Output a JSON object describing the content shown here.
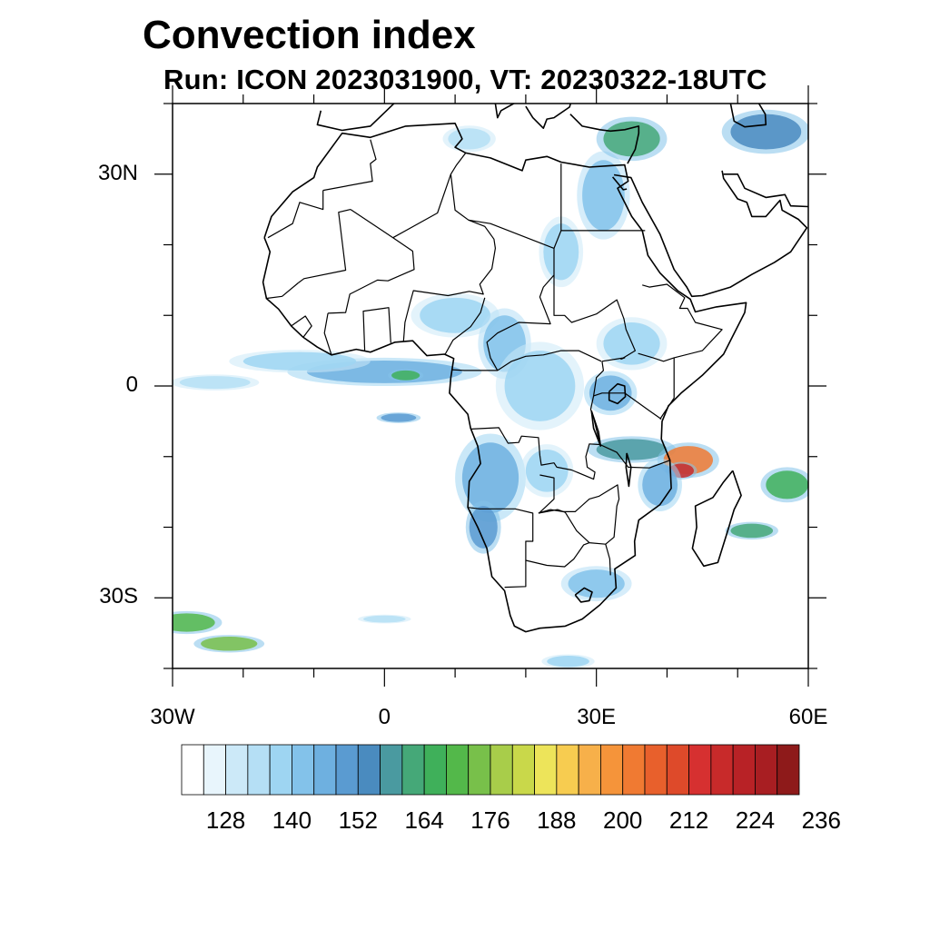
{
  "title": "Convection index",
  "subtitle": "Run: ICON 2023031900,  VT: 20230322-18UTC",
  "axes": {
    "lat_ticks": [
      {
        "value": 30,
        "label": "30N"
      },
      {
        "value": 0,
        "label": "0"
      },
      {
        "value": -30,
        "label": "30S"
      }
    ],
    "lon_ticks": [
      {
        "value": -30,
        "label": "30W"
      },
      {
        "value": 0,
        "label": "0"
      },
      {
        "value": 30,
        "label": "30E"
      },
      {
        "value": 60,
        "label": "60E"
      }
    ]
  },
  "colorbar": {
    "colors": [
      "#ffffff",
      "#e8f5fc",
      "#cce9f8",
      "#b5dff5",
      "#9ed5f2",
      "#83c2ea",
      "#6eb0e0",
      "#5a9bd1",
      "#4a8bbf",
      "#4a9aa0",
      "#45a878",
      "#3fb05a",
      "#53b84a",
      "#78c04a",
      "#a8cd4a",
      "#c9d84a",
      "#ede45a",
      "#f7cc50",
      "#f7b04a",
      "#f5943a",
      "#f07a32",
      "#e8602c",
      "#de4a2a",
      "#d63030",
      "#c82a2a",
      "#b82226",
      "#a81e22",
      "#8e1a1a"
    ],
    "labels": [
      "128",
      "140",
      "152",
      "164",
      "176",
      "188",
      "200",
      "212",
      "224",
      "236"
    ]
  },
  "convection_cells": [
    {
      "lon": 0,
      "lat": 2,
      "rlon": 11,
      "rlat": 1.6,
      "level": 6
    },
    {
      "lon": -12,
      "lat": 3.5,
      "rlon": 8,
      "rlat": 1.3,
      "level": 4
    },
    {
      "lon": -24,
      "lat": 0.5,
      "rlon": 5,
      "rlat": 0.9,
      "level": 3
    },
    {
      "lon": 3,
      "lat": 1.5,
      "rlon": 2,
      "rlat": 0.7,
      "level": 11
    },
    {
      "lon": 2,
      "lat": -4.5,
      "rlon": 2.5,
      "rlat": 0.6,
      "level": 7
    },
    {
      "lon": 10,
      "lat": 10,
      "rlon": 5,
      "rlat": 2.5,
      "level": 4
    },
    {
      "lon": 17,
      "lat": 6,
      "rlon": 3,
      "rlat": 4,
      "level": 5
    },
    {
      "lon": 22,
      "lat": 0,
      "rlon": 5,
      "rlat": 5,
      "level": 4
    },
    {
      "lon": 32,
      "lat": -1,
      "rlon": 3,
      "rlat": 2.5,
      "level": 6
    },
    {
      "lon": 35,
      "lat": 6,
      "rlon": 4,
      "rlat": 3,
      "level": 4
    },
    {
      "lon": 31,
      "lat": 27,
      "rlon": 3,
      "rlat": 5,
      "level": 5
    },
    {
      "lon": 25,
      "lat": 19,
      "rlon": 2.5,
      "rlat": 4,
      "level": 4
    },
    {
      "lon": 35,
      "lat": 35,
      "rlon": 4,
      "rlat": 2.5,
      "level": 10
    },
    {
      "lon": 54,
      "lat": 36,
      "rlon": 5,
      "rlat": 2.5,
      "level": 8
    },
    {
      "lon": 12,
      "lat": 35,
      "rlon": 3,
      "rlat": 1.5,
      "level": 3
    },
    {
      "lon": 15,
      "lat": -13,
      "rlon": 4,
      "rlat": 5,
      "level": 6
    },
    {
      "lon": 14,
      "lat": -20,
      "rlon": 2,
      "rlat": 3,
      "level": 7
    },
    {
      "lon": 23,
      "lat": -12,
      "rlon": 3,
      "rlat": 3,
      "level": 4
    },
    {
      "lon": 35,
      "lat": -9,
      "rlon": 5,
      "rlat": 1.5,
      "level": 9
    },
    {
      "lon": 43,
      "lat": -10.5,
      "rlon": 3.5,
      "rlat": 2,
      "level": 20
    },
    {
      "lon": 42,
      "lat": -12,
      "rlon": 1.8,
      "rlat": 1,
      "level": 24
    },
    {
      "lon": 39,
      "lat": -14,
      "rlon": 2.5,
      "rlat": 3,
      "level": 6
    },
    {
      "lon": 57,
      "lat": -14,
      "rlon": 3,
      "rlat": 2,
      "level": 11
    },
    {
      "lon": 52,
      "lat": -20.5,
      "rlon": 3,
      "rlat": 1,
      "level": 10
    },
    {
      "lon": 30,
      "lat": -28,
      "rlon": 4,
      "rlat": 2,
      "level": 5
    },
    {
      "lon": -28,
      "lat": -33.5,
      "rlon": 4,
      "rlat": 1.3,
      "level": 12
    },
    {
      "lon": -22,
      "lat": -36.5,
      "rlon": 4,
      "rlat": 1,
      "level": 13
    },
    {
      "lon": 0,
      "lat": -33,
      "rlon": 3,
      "rlat": 0.5,
      "level": 3
    },
    {
      "lon": 26,
      "lat": -39,
      "rlon": 3,
      "rlat": 0.8,
      "level": 4
    }
  ]
}
